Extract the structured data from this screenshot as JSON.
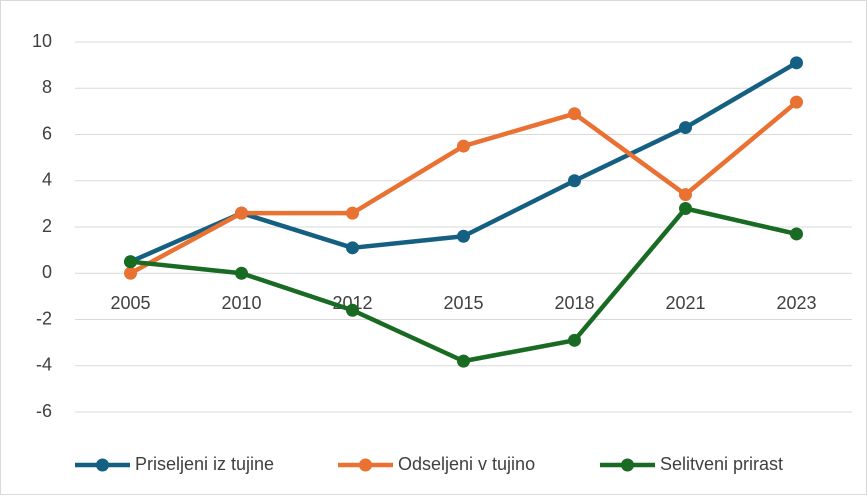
{
  "chart_data": {
    "type": "line",
    "categories": [
      "2005",
      "2010",
      "2012",
      "2015",
      "2018",
      "2021",
      "2023"
    ],
    "series": [
      {
        "name": "Priseljeni iz tujine",
        "color": "#156082",
        "values": [
          0.5,
          2.6,
          1.1,
          1.6,
          4.0,
          6.3,
          9.1
        ]
      },
      {
        "name": "Odseljeni v tujino",
        "color": "#e97132",
        "values": [
          0.0,
          2.6,
          2.6,
          5.5,
          6.9,
          3.4,
          7.4
        ]
      },
      {
        "name": "Selitveni prirast",
        "color": "#196b24",
        "values": [
          0.5,
          0.0,
          -1.6,
          -3.8,
          -2.9,
          2.8,
          1.7
        ]
      }
    ],
    "ylim": [
      -6,
      10
    ],
    "yticks": [
      -6,
      -4,
      -2,
      0,
      2,
      4,
      6,
      8,
      10
    ],
    "grid": true,
    "legend": "bottom"
  }
}
